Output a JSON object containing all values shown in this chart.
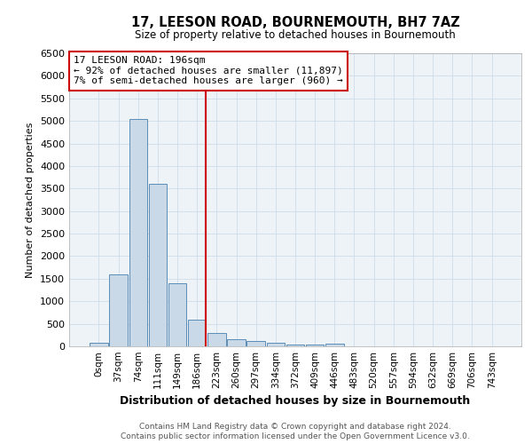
{
  "title1": "17, LEESON ROAD, BOURNEMOUTH, BH7 7AZ",
  "title2": "Size of property relative to detached houses in Bournemouth",
  "xlabel": "Distribution of detached houses by size in Bournemouth",
  "ylabel": "Number of detached properties",
  "footer1": "Contains HM Land Registry data © Crown copyright and database right 2024.",
  "footer2": "Contains public sector information licensed under the Open Government Licence v3.0.",
  "bin_labels": [
    "0sqm",
    "37sqm",
    "74sqm",
    "111sqm",
    "149sqm",
    "186sqm",
    "223sqm",
    "260sqm",
    "297sqm",
    "334sqm",
    "372sqm",
    "409sqm",
    "446sqm",
    "483sqm",
    "520sqm",
    "557sqm",
    "594sqm",
    "632sqm",
    "669sqm",
    "706sqm",
    "743sqm"
  ],
  "bar_values": [
    75,
    1600,
    5050,
    3600,
    1400,
    600,
    300,
    155,
    120,
    80,
    40,
    30,
    60,
    0,
    0,
    0,
    0,
    0,
    0,
    0,
    0
  ],
  "bar_color": "#c9d9e8",
  "bar_edge_color": "#5b8db8",
  "vline_x": 5.43,
  "vline_color": "#cc0000",
  "annotation_line1": "17 LEESON ROAD: 196sqm",
  "annotation_line2": "← 92% of detached houses are smaller (11,897)",
  "annotation_line3": "7% of semi-detached houses are larger (960) →",
  "annotation_box_color": "#cc0000",
  "ylim": [
    0,
    6500
  ],
  "yticks": [
    0,
    500,
    1000,
    1500,
    2000,
    2500,
    3000,
    3500,
    4000,
    4500,
    5000,
    5500,
    6000,
    6500
  ],
  "grid_color": "#c8d8e8",
  "background_color": "#ffffff",
  "plot_bg_color": "#eef3f8"
}
